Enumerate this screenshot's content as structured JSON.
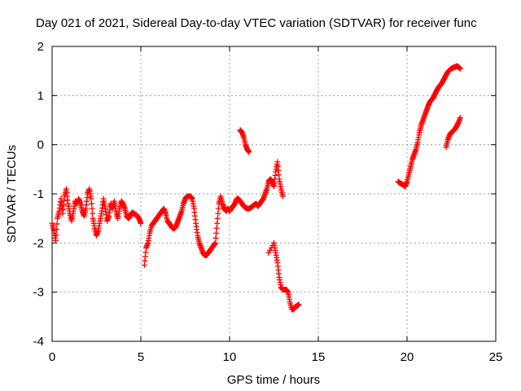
{
  "chart_data": {
    "type": "scatter",
    "title": "Day 021 of 2021, Sidereal Day-to-day VTEC variation (SDTVAR) for receiver func",
    "xlabel": "GPS time / hours",
    "ylabel": "SDTVAR / TECUs",
    "xlim": [
      0,
      25
    ],
    "ylim": [
      -4,
      2
    ],
    "xticks": [
      "0",
      "5",
      "10",
      "15",
      "20",
      "25"
    ],
    "yticks": [
      "-4",
      "-3",
      "-2",
      "-1",
      "0",
      "1",
      "2"
    ],
    "grid": true,
    "marker": "+",
    "series_color": "#ff0000",
    "series": [
      {
        "name": "SDTVAR",
        "segments": [
          [
            [
              0.0,
              -1.6
            ],
            [
              0.1,
              -1.75
            ],
            [
              0.2,
              -1.95
            ],
            [
              0.3,
              -1.5
            ],
            [
              0.4,
              -1.35
            ],
            [
              0.5,
              -1.1
            ],
            [
              0.6,
              -1.4
            ],
            [
              0.7,
              -1.05
            ],
            [
              0.8,
              -0.9
            ],
            [
              0.9,
              -1.2
            ],
            [
              1.0,
              -1.4
            ],
            [
              1.1,
              -1.55
            ],
            [
              1.2,
              -1.35
            ],
            [
              1.3,
              -1.15
            ],
            [
              1.4,
              -1.2
            ],
            [
              1.5,
              -1.1
            ],
            [
              1.6,
              -1.2
            ],
            [
              1.7,
              -1.35
            ],
            [
              1.8,
              -1.45
            ],
            [
              1.9,
              -1.3
            ],
            [
              2.0,
              -1.0
            ],
            [
              2.1,
              -0.9
            ],
            [
              2.2,
              -1.1
            ],
            [
              2.3,
              -1.5
            ],
            [
              2.4,
              -1.7
            ],
            [
              2.5,
              -1.85
            ],
            [
              2.6,
              -1.75
            ],
            [
              2.7,
              -1.55
            ],
            [
              2.8,
              -1.35
            ],
            [
              2.9,
              -1.1
            ],
            [
              3.0,
              -1.3
            ],
            [
              3.1,
              -1.55
            ],
            [
              3.2,
              -1.45
            ],
            [
              3.3,
              -1.2
            ],
            [
              3.4,
              -1.3
            ],
            [
              3.5,
              -1.15
            ],
            [
              3.6,
              -1.35
            ],
            [
              3.7,
              -1.5
            ],
            [
              3.8,
              -1.3
            ],
            [
              3.9,
              -1.15
            ],
            [
              4.0,
              -1.2
            ],
            [
              4.1,
              -1.3
            ],
            [
              4.2,
              -1.45
            ],
            [
              4.3,
              -1.5
            ],
            [
              4.4,
              -1.45
            ],
            [
              4.5,
              -1.38
            ],
            [
              4.6,
              -1.4
            ],
            [
              4.7,
              -1.42
            ],
            [
              4.8,
              -1.45
            ],
            [
              4.9,
              -1.5
            ],
            [
              5.0,
              -1.6
            ]
          ],
          [
            [
              5.2,
              -2.45
            ],
            [
              5.3,
              -2.1
            ],
            [
              5.4,
              -2.0
            ],
            [
              5.5,
              -1.8
            ],
            [
              5.6,
              -1.65
            ],
            [
              5.7,
              -1.6
            ],
            [
              5.8,
              -1.55
            ],
            [
              5.9,
              -1.5
            ],
            [
              6.0,
              -1.45
            ],
            [
              6.1,
              -1.4
            ],
            [
              6.2,
              -1.35
            ],
            [
              6.3,
              -1.3
            ],
            [
              6.4,
              -1.4
            ],
            [
              6.5,
              -1.55
            ],
            [
              6.6,
              -1.6
            ],
            [
              6.7,
              -1.65
            ],
            [
              6.8,
              -1.7
            ],
            [
              6.9,
              -1.7
            ],
            [
              7.0,
              -1.65
            ],
            [
              7.1,
              -1.55
            ],
            [
              7.2,
              -1.45
            ],
            [
              7.3,
              -1.35
            ],
            [
              7.4,
              -1.2
            ],
            [
              7.5,
              -1.1
            ],
            [
              7.6,
              -1.05
            ],
            [
              7.7,
              -1.05
            ],
            [
              7.8,
              -1.05
            ],
            [
              7.9,
              -1.1
            ],
            [
              8.0,
              -1.3
            ],
            [
              8.1,
              -1.6
            ],
            [
              8.2,
              -1.85
            ],
            [
              8.3,
              -2.0
            ],
            [
              8.4,
              -2.1
            ],
            [
              8.5,
              -2.2
            ],
            [
              8.6,
              -2.25
            ],
            [
              8.7,
              -2.25
            ],
            [
              8.8,
              -2.2
            ],
            [
              8.9,
              -2.15
            ],
            [
              9.0,
              -2.1
            ],
            [
              9.1,
              -2.05
            ],
            [
              9.2,
              -2.0
            ],
            [
              9.3,
              -1.6
            ],
            [
              9.4,
              -1.2
            ],
            [
              9.5,
              -1.05
            ],
            [
              9.6,
              -1.2
            ],
            [
              9.7,
              -1.3
            ],
            [
              9.8,
              -1.35
            ],
            [
              9.9,
              -1.3
            ],
            [
              10.0,
              -1.35
            ],
            [
              10.1,
              -1.3
            ],
            [
              10.2,
              -1.25
            ],
            [
              10.3,
              -1.2
            ],
            [
              10.4,
              -1.1
            ],
            [
              10.5,
              -1.1
            ],
            [
              10.6,
              -1.15
            ],
            [
              10.7,
              -1.2
            ],
            [
              10.8,
              -1.25
            ],
            [
              10.9,
              -1.28
            ],
            [
              11.0,
              -1.3
            ],
            [
              11.1,
              -1.3
            ],
            [
              11.2,
              -1.28
            ],
            [
              11.3,
              -1.25
            ],
            [
              11.4,
              -1.22
            ],
            [
              11.5,
              -1.2
            ],
            [
              11.6,
              -1.25
            ],
            [
              11.7,
              -1.2
            ],
            [
              11.8,
              -1.15
            ],
            [
              11.9,
              -1.1
            ],
            [
              12.0,
              -1.0
            ],
            [
              12.1,
              -0.9
            ],
            [
              12.2,
              -0.75
            ],
            [
              12.3,
              -0.7
            ],
            [
              12.4,
              -0.75
            ],
            [
              12.5,
              -0.85
            ],
            [
              12.6,
              -0.55
            ],
            [
              12.7,
              -0.35
            ],
            [
              12.8,
              -0.7
            ],
            [
              12.9,
              -0.9
            ],
            [
              13.0,
              -1.05
            ]
          ],
          [
            [
              10.6,
              0.3
            ],
            [
              10.7,
              0.25
            ],
            [
              10.8,
              0.15
            ],
            [
              10.9,
              0.0
            ],
            [
              11.0,
              -0.1
            ],
            [
              11.1,
              -0.15
            ]
          ],
          [
            [
              12.2,
              -2.2
            ],
            [
              12.5,
              -2.0
            ],
            [
              12.6,
              -2.2
            ],
            [
              12.7,
              -2.4
            ],
            [
              12.8,
              -2.7
            ],
            [
              12.9,
              -2.9
            ],
            [
              13.0,
              -2.95
            ],
            [
              13.1,
              -2.95
            ],
            [
              13.2,
              -2.95
            ],
            [
              13.3,
              -3.0
            ],
            [
              13.4,
              -3.2
            ],
            [
              13.5,
              -3.35
            ],
            [
              13.6,
              -3.35
            ],
            [
              13.7,
              -3.3
            ],
            [
              13.8,
              -3.28
            ],
            [
              13.9,
              -3.25
            ]
          ],
          [
            [
              19.5,
              -0.75
            ],
            [
              19.6,
              -0.78
            ],
            [
              19.7,
              -0.8
            ],
            [
              19.8,
              -0.82
            ],
            [
              19.9,
              -0.85
            ],
            [
              20.0,
              -0.75
            ],
            [
              20.1,
              -0.6
            ],
            [
              20.2,
              -0.45
            ],
            [
              20.3,
              -0.3
            ],
            [
              20.4,
              -0.2
            ],
            [
              20.5,
              -0.1
            ],
            [
              20.6,
              0.05
            ],
            [
              20.7,
              0.25
            ],
            [
              20.8,
              0.4
            ],
            [
              20.9,
              0.5
            ],
            [
              21.0,
              0.6
            ],
            [
              21.1,
              0.7
            ],
            [
              21.2,
              0.8
            ],
            [
              21.3,
              0.88
            ],
            [
              21.4,
              0.92
            ],
            [
              21.5,
              0.97
            ],
            [
              21.6,
              1.05
            ],
            [
              21.7,
              1.12
            ],
            [
              21.8,
              1.18
            ],
            [
              21.9,
              1.22
            ],
            [
              22.0,
              1.28
            ],
            [
              22.1,
              1.35
            ],
            [
              22.2,
              1.42
            ],
            [
              22.3,
              1.48
            ],
            [
              22.4,
              1.52
            ],
            [
              22.5,
              1.55
            ],
            [
              22.6,
              1.57
            ],
            [
              22.7,
              1.58
            ],
            [
              22.8,
              1.6
            ],
            [
              22.9,
              1.58
            ],
            [
              23.0,
              1.55
            ]
          ],
          [
            [
              22.2,
              -0.05
            ],
            [
              22.3,
              0.1
            ],
            [
              22.4,
              0.2
            ],
            [
              22.5,
              0.25
            ],
            [
              22.6,
              0.28
            ],
            [
              22.7,
              0.32
            ],
            [
              22.8,
              0.38
            ],
            [
              22.9,
              0.45
            ],
            [
              23.0,
              0.55
            ]
          ]
        ]
      }
    ]
  }
}
